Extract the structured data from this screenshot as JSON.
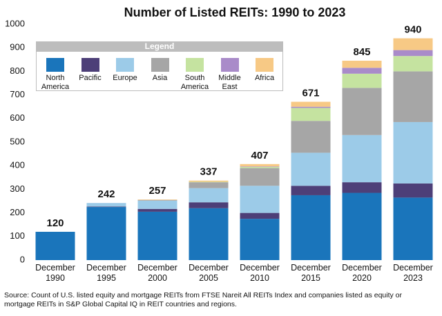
{
  "chart_data": {
    "type": "stacked_bar",
    "title": "Number of Listed REITs: 1990 to 2023",
    "legend_title": "Legend",
    "categories": [
      "December 1990",
      "December 1995",
      "December 2000",
      "December 2005",
      "December 2010",
      "December 2015",
      "December 2020",
      "December 2023"
    ],
    "totals": [
      120,
      242,
      257,
      337,
      407,
      671,
      845,
      940
    ],
    "series": [
      {
        "name": "North America",
        "color": "#1a75bb",
        "values": [
          120,
          225,
          205,
          220,
          175,
          275,
          285,
          265
        ]
      },
      {
        "name": "Pacific",
        "color": "#4d3f78",
        "values": [
          0,
          2,
          12,
          25,
          25,
          40,
          45,
          60
        ]
      },
      {
        "name": "Europe",
        "color": "#9ccbe8",
        "values": [
          0,
          15,
          35,
          60,
          115,
          140,
          200,
          260
        ]
      },
      {
        "name": "Asia",
        "color": "#a6a6a6",
        "values": [
          0,
          0,
          3,
          25,
          75,
          135,
          200,
          215
        ]
      },
      {
        "name": "South America",
        "color": "#c5e3a0",
        "values": [
          0,
          0,
          0,
          2,
          5,
          55,
          60,
          65
        ]
      },
      {
        "name": "Middle East",
        "color": "#a98bc9",
        "values": [
          0,
          0,
          0,
          0,
          2,
          5,
          25,
          25
        ]
      },
      {
        "name": "Africa",
        "color": "#f7c985",
        "values": [
          0,
          0,
          2,
          5,
          10,
          21,
          30,
          50
        ]
      }
    ],
    "ylim": [
      0,
      1000
    ],
    "yticks": [
      0,
      100,
      200,
      300,
      400,
      500,
      600,
      700,
      800,
      900,
      1000
    ],
    "grid": false,
    "source": "Source: Count of U.S. listed equity and mortgage REITs from FTSE Nareit All REITs Index and companies listed as equity or mortgage REITs in S&P Global Capital IQ in REIT countries and regions."
  }
}
